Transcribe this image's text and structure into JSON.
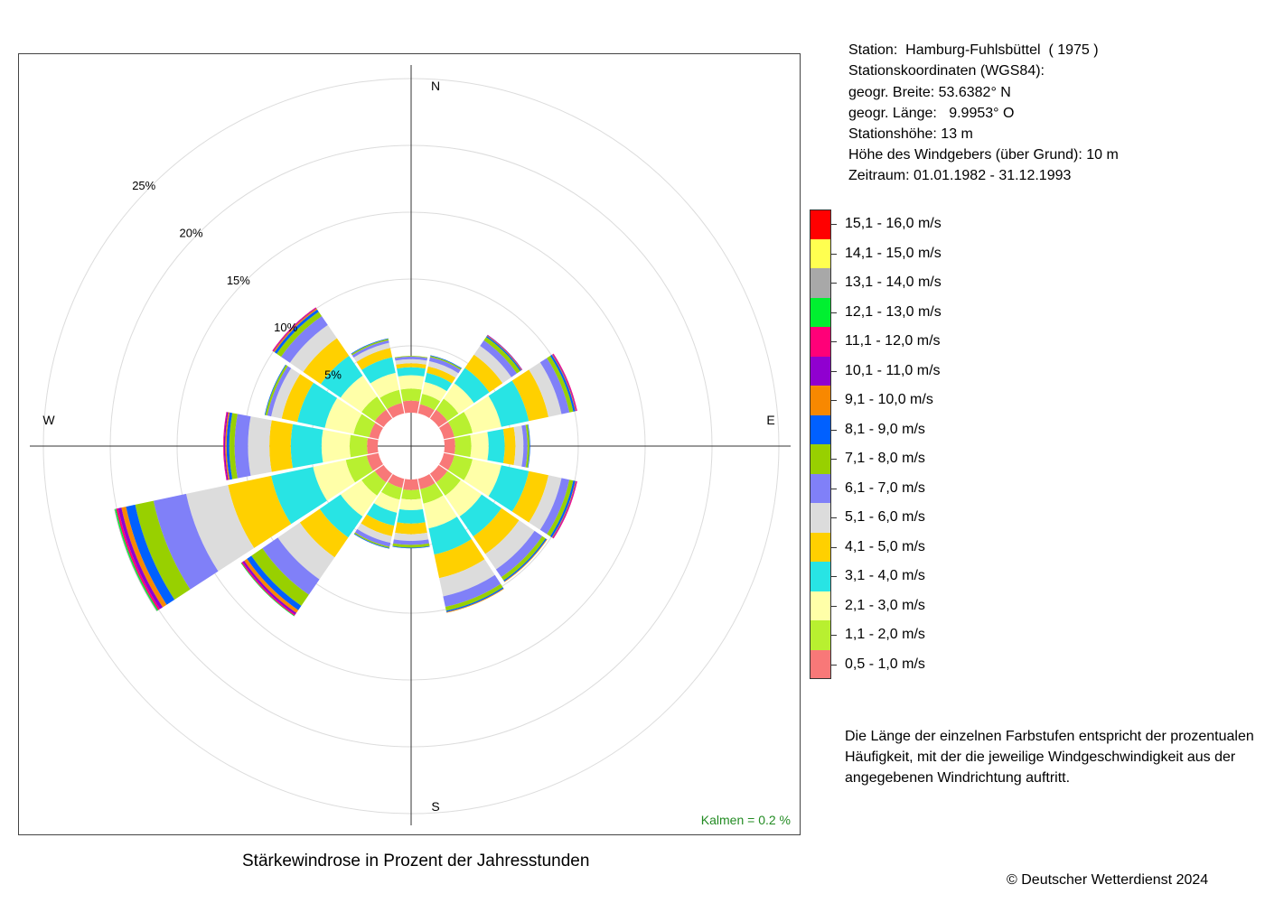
{
  "chart_data": {
    "type": "wind_rose",
    "title": "Stärkewindrose in Prozent der Jahresstunden",
    "directions": [
      "N",
      "NNO",
      "NO",
      "ONO",
      "O",
      "OSO",
      "SO",
      "SSO",
      "S",
      "SSW",
      "SW",
      "WSW",
      "W",
      "WNW",
      "NW",
      "NNW"
    ],
    "compass_labels": {
      "north": "N",
      "east": "E",
      "south": "S",
      "west": "W"
    },
    "radial_ticks": [
      5,
      10,
      15,
      20,
      25
    ],
    "radial_tick_labels": [
      "5%",
      "10%",
      "15%",
      "20%",
      "25%"
    ],
    "speed_classes": [
      "0,5 - 1,0 m/s",
      "1,1 - 2,0 m/s",
      "2,1 - 3,0 m/s",
      "3,1 - 4,0 m/s",
      "4,1 - 5,0 m/s",
      "5,1 - 6,0 m/s",
      "6,1 - 7,0 m/s",
      "7,1 - 8,0 m/s",
      "8,1 - 9,0 m/s",
      "9,1 - 10,0 m/s",
      "10,1 - 11,0 m/s",
      "11,1 - 12,0 m/s",
      "12,1 - 13,0 m/s",
      "13,1 - 14,0 m/s",
      "14,1 - 15,0 m/s",
      "15,1 - 16,0 m/s"
    ],
    "colors": [
      "#F87878",
      "#B8F030",
      "#FFFFA8",
      "#28E4E4",
      "#FFD000",
      "#DCDCDC",
      "#8080F8",
      "#98D000",
      "#0060FF",
      "#F88800",
      "#9000D0",
      "#FF0078",
      "#00F030",
      "#A8A8A8",
      "#FFFF50",
      "#FF0000"
    ],
    "series": [
      {
        "direction": "N",
        "values": [
          0.9,
          0.9,
          1.0,
          0.6,
          0.3,
          0.3,
          0.2,
          0.05,
          0,
          0,
          0,
          0,
          0,
          0,
          0,
          0
        ]
      },
      {
        "direction": "NNO",
        "values": [
          0.7,
          0.8,
          0.9,
          0.7,
          0.5,
          0.4,
          0.3,
          0.1,
          0.05,
          0,
          0,
          0,
          0,
          0,
          0,
          0
        ]
      },
      {
        "direction": "NO",
        "values": [
          0.8,
          1.0,
          1.4,
          1.4,
          1.2,
          0.8,
          0.5,
          0.3,
          0.1,
          0.05,
          0.05,
          0,
          0,
          0,
          0,
          0
        ]
      },
      {
        "direction": "ONO",
        "values": [
          0.8,
          1.4,
          2.2,
          2.1,
          1.5,
          1.0,
          0.6,
          0.3,
          0.15,
          0.05,
          0.05,
          0.05,
          0,
          0,
          0,
          0
        ]
      },
      {
        "direction": "O",
        "values": [
          0.8,
          1.2,
          1.3,
          1.2,
          0.8,
          0.6,
          0.3,
          0.15,
          0.05,
          0,
          0,
          0,
          0,
          0,
          0,
          0
        ]
      },
      {
        "direction": "OSO",
        "values": [
          0.8,
          1.4,
          2.2,
          2.1,
          1.5,
          1.0,
          0.6,
          0.3,
          0.15,
          0.05,
          0.05,
          0.05,
          0,
          0,
          0,
          0
        ]
      },
      {
        "direction": "SO",
        "values": [
          0.8,
          1.2,
          1.9,
          1.8,
          1.6,
          1.4,
          0.7,
          0.3,
          0.1,
          0.05,
          0,
          0,
          0,
          0,
          0,
          0
        ]
      },
      {
        "direction": "SSO",
        "values": [
          0.8,
          1.1,
          1.9,
          2.0,
          1.8,
          1.4,
          0.8,
          0.3,
          0.1,
          0.05,
          0,
          0,
          0,
          0,
          0,
          0
        ]
      },
      {
        "direction": "S",
        "values": [
          0.8,
          0.7,
          0.8,
          1.0,
          0.8,
          0.5,
          0.3,
          0.2,
          0.05,
          0,
          0,
          0,
          0,
          0,
          0,
          0
        ]
      },
      {
        "direction": "SSW",
        "values": [
          0.7,
          0.9,
          1.0,
          1.0,
          0.8,
          0.5,
          0.3,
          0.1,
          0.05,
          0,
          0,
          0,
          0,
          0,
          0,
          0
        ]
      },
      {
        "direction": "SW",
        "values": [
          0.8,
          1.2,
          1.9,
          1.9,
          1.8,
          2.0,
          1.4,
          1.0,
          0.4,
          0.25,
          0.15,
          0.1,
          0.05,
          0,
          0,
          0
        ]
      },
      {
        "direction": "WSW",
        "values": [
          0.9,
          1.6,
          2.5,
          3.2,
          3.3,
          3.2,
          2.5,
          1.4,
          0.7,
          0.35,
          0.25,
          0.15,
          0.1,
          0.05,
          0,
          0
        ]
      },
      {
        "direction": "W",
        "values": [
          0.8,
          1.3,
          2.1,
          2.3,
          1.6,
          1.6,
          1.0,
          0.4,
          0.2,
          0.1,
          0.1,
          0.05,
          0,
          0,
          0,
          0
        ]
      },
      {
        "direction": "WNW",
        "values": [
          0.7,
          1.2,
          2.2,
          2.1,
          1.2,
          0.8,
          0.3,
          0.15,
          0.05,
          0,
          0,
          0,
          0,
          0,
          0,
          0
        ]
      },
      {
        "direction": "NW",
        "values": [
          0.8,
          1.2,
          1.9,
          1.8,
          1.6,
          1.2,
          0.8,
          0.4,
          0.2,
          0.1,
          0.05,
          0.05,
          0,
          0,
          0,
          0
        ]
      },
      {
        "direction": "NNW",
        "values": [
          0.8,
          1.0,
          1.3,
          1.2,
          0.7,
          0.4,
          0.2,
          0.1,
          0.05,
          0,
          0,
          0,
          0,
          0,
          0,
          0
        ]
      }
    ],
    "calm_label": "Kalmen  =  0.2 %",
    "calm_color": "#228B22",
    "grid": true
  },
  "info": {
    "station": "Station:  Hamburg-Fuhlsbüttel  ( 1975 )",
    "coords_heading": "Stationskoordinaten (WGS84):",
    "lat": "geogr. Breite: 53.6382° N",
    "lon": "geogr. Länge:   9.9953° O",
    "elevation": "Stationshöhe: 13 m",
    "sensor_height": "Höhe des Windgebers (über Grund): 10 m",
    "period": "Zeitraum: 01.01.1982 - 31.12.1993"
  },
  "note": "Die Länge der einzelnen Farbstufen entspricht der prozentualen Häufigkeit, mit der die jeweilige Windgeschwindigkeit aus der angegebenen Windrichtung auftritt.",
  "copyright": "© Deutscher Wetterdienst  2024"
}
